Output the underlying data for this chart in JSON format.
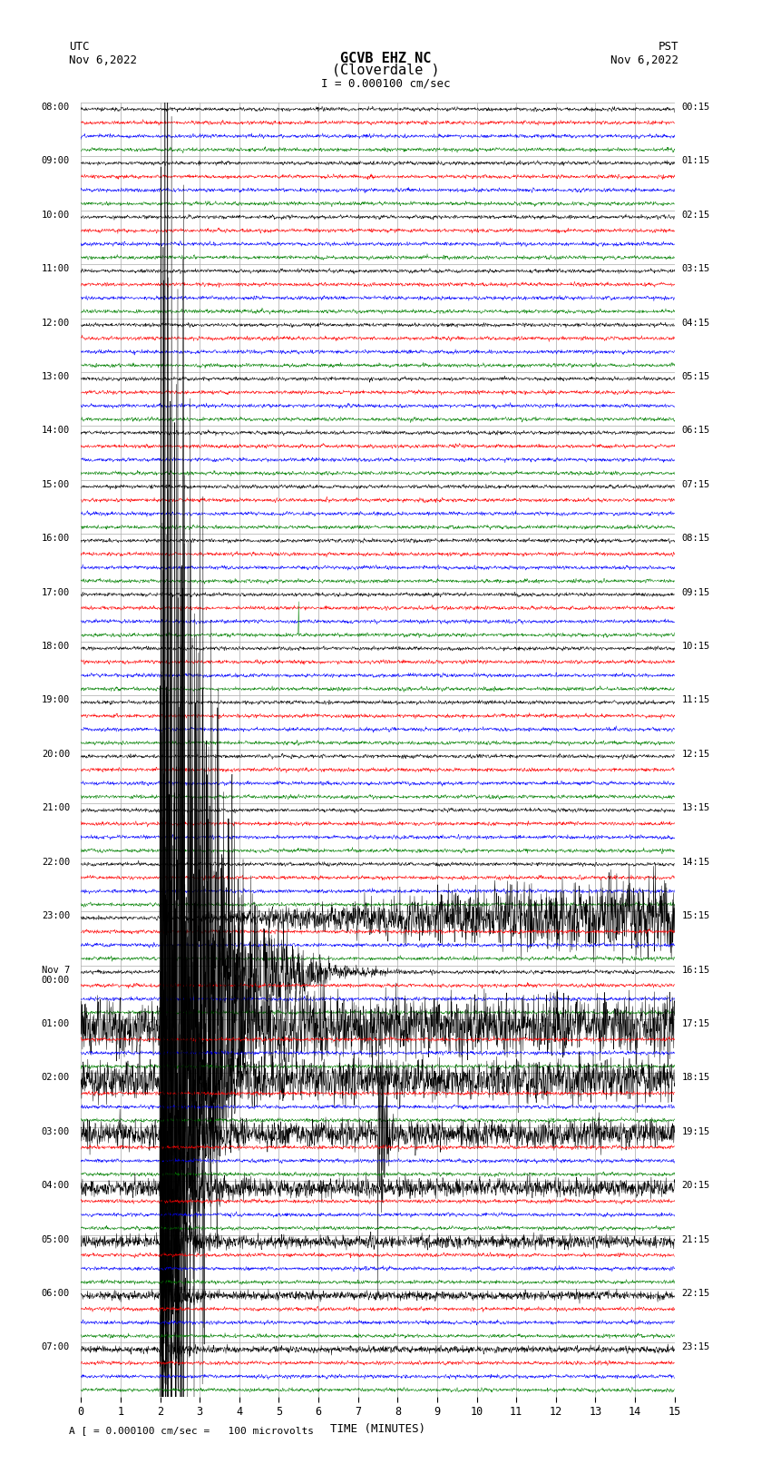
{
  "title_line1": "GCVB EHZ NC",
  "title_line2": "(Cloverdale )",
  "scale_text": "I = 0.000100 cm/sec",
  "footer_text": "A [ = 0.000100 cm/sec =   100 microvolts",
  "left_label_line1": "UTC",
  "left_label_line2": "Nov 6,2022",
  "right_label_line1": "PST",
  "right_label_line2": "Nov 6,2022",
  "xlabel": "TIME (MINUTES)",
  "utc_times": [
    "08:00",
    "09:00",
    "10:00",
    "11:00",
    "12:00",
    "13:00",
    "14:00",
    "15:00",
    "16:00",
    "17:00",
    "18:00",
    "19:00",
    "20:00",
    "21:00",
    "22:00",
    "23:00",
    "Nov 7\n00:00",
    "01:00",
    "02:00",
    "03:00",
    "04:00",
    "05:00",
    "06:00",
    "07:00"
  ],
  "pst_times": [
    "00:15",
    "01:15",
    "02:15",
    "03:15",
    "04:15",
    "05:15",
    "06:15",
    "07:15",
    "08:15",
    "09:15",
    "10:15",
    "11:15",
    "12:15",
    "13:15",
    "14:15",
    "15:15",
    "16:15",
    "17:15",
    "18:15",
    "19:15",
    "20:15",
    "21:15",
    "22:15",
    "23:15"
  ],
  "n_rows": 24,
  "n_channels": 4,
  "colors": [
    "black",
    "red",
    "blue",
    "green"
  ],
  "minutes": 15,
  "bg_color": "white",
  "grid_color": "#aaaaaa",
  "eq_spike_row": 15,
  "eq_main_row": 16,
  "eq_spike_t": 2.0,
  "eq_decay_rows": [
    17,
    18,
    19,
    20,
    21,
    22,
    23
  ],
  "green_spike_row": 9,
  "green_spike_t": 5.5,
  "noise_scales": [
    0.006,
    0.004,
    0.005,
    0.003
  ],
  "samples": 2000
}
